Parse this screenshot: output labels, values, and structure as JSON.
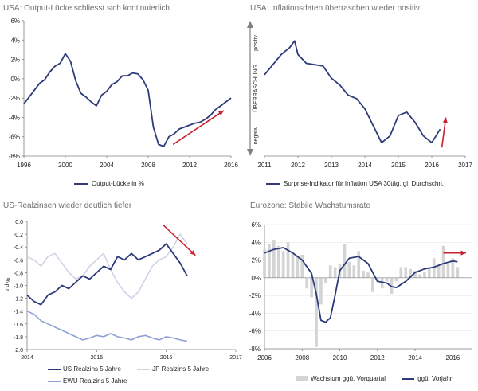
{
  "chart_data": [
    {
      "type": "line",
      "title": "USA: Output-Lücke schliesst sich kontinuierlich",
      "xlim": [
        1996,
        2016
      ],
      "ylim": [
        -8,
        6
      ],
      "xticks": [
        "1996",
        "2000",
        "2004",
        "2008",
        "2012",
        "2016"
      ],
      "yticks": [
        "6%",
        "4%",
        "2%",
        "0%",
        "-2%",
        "-4%",
        "-6%",
        "-8%"
      ],
      "series": [
        {
          "name": "Output-Lücke in %",
          "color": "#2e3a7a",
          "x": [
            1996,
            1996.5,
            1997,
            1997.5,
            1998,
            1998.5,
            1999,
            1999.5,
            2000,
            2000.5,
            2001,
            2001.5,
            2002,
            2002.5,
            2003,
            2003.5,
            2004,
            2004.5,
            2005,
            2005.5,
            2006,
            2006.5,
            2007,
            2007.5,
            2008,
            2008.5,
            2009,
            2009.5,
            2010,
            2010.5,
            2011,
            2011.5,
            2012,
            2012.5,
            2013,
            2013.5,
            2014,
            2014.5,
            2015,
            2015.5,
            2016
          ],
          "values": [
            -2.6,
            -1.9,
            -1.2,
            -0.5,
            -0.1,
            0.7,
            1.3,
            1.6,
            2.6,
            1.8,
            -0.2,
            -1.5,
            -1.9,
            -2.4,
            -2.8,
            -1.7,
            -1.3,
            -0.6,
            -0.3,
            0.3,
            0.3,
            0.6,
            0.5,
            -0.1,
            -1.2,
            -5.0,
            -6.8,
            -7.0,
            -6.0,
            -5.7,
            -5.2,
            -5.0,
            -4.8,
            -4.6,
            -4.5,
            -4.2,
            -3.8,
            -3.2,
            -2.8,
            -2.4,
            -2.0
          ]
        }
      ],
      "annotations": [
        "trend arrow upward"
      ]
    },
    {
      "type": "line",
      "title": "USA: Inflationsdaten überraschen wieder positiv",
      "xlim": [
        2011,
        2017
      ],
      "xticks": [
        "2011",
        "2012",
        "2013",
        "2014",
        "2015",
        "2016",
        "2017"
      ],
      "ylabel": "ÜBERRASCHUNG",
      "ylabel_top": "positiv",
      "ylabel_bottom": "negativ",
      "series": [
        {
          "name": "Surprise-Indikator für Inflation  USA 30täg. gl. Durchschn.",
          "color": "#2e3a7a",
          "x": [
            2011,
            2011.25,
            2011.5,
            2011.75,
            2011.9,
            2012.0,
            2012.25,
            2012.5,
            2012.75,
            2013.0,
            2013.25,
            2013.5,
            2013.75,
            2014.0,
            2014.25,
            2014.5,
            2014.75,
            2015.0,
            2015.25,
            2015.5,
            2015.75,
            2016.0,
            2016.25
          ],
          "values": [
            0.45,
            0.6,
            0.75,
            0.85,
            0.95,
            0.75,
            0.62,
            0.6,
            0.58,
            0.4,
            0.3,
            0.15,
            0.1,
            -0.05,
            -0.3,
            -0.55,
            -0.45,
            -0.15,
            -0.1,
            -0.25,
            -0.45,
            -0.55,
            -0.35
          ]
        }
      ],
      "annotations": [
        "trend arrow upward"
      ]
    },
    {
      "type": "line",
      "title": "US-Realzinsen wieder deutlich tiefer",
      "xlim": [
        2014,
        2017
      ],
      "ylim": [
        -2.0,
        0.0
      ],
      "xticks": [
        "2014",
        "2015",
        "2016",
        "2017"
      ],
      "yticks": [
        "0.0",
        "-0.2",
        "-0.4",
        "-0.6",
        "-0.8",
        "-1.0",
        "-1.2",
        "-1.4",
        "-1.6",
        "-1.8",
        "-2.0"
      ],
      "ylabel": "% p.a.",
      "series": [
        {
          "name": "US Realzins 5 Jahre",
          "color": "#2e3a7a",
          "x": [
            2014.0,
            2014.1,
            2014.2,
            2014.3,
            2014.4,
            2014.5,
            2014.6,
            2014.7,
            2014.8,
            2014.9,
            2015.0,
            2015.1,
            2015.2,
            2015.3,
            2015.4,
            2015.5,
            2015.6,
            2015.7,
            2015.8,
            2015.9,
            2016.0,
            2016.1,
            2016.2,
            2016.3
          ],
          "values": [
            -1.15,
            -1.25,
            -1.3,
            -1.15,
            -1.1,
            -1.0,
            -1.05,
            -0.95,
            -0.85,
            -0.9,
            -0.8,
            -0.7,
            -0.75,
            -0.55,
            -0.6,
            -0.5,
            -0.6,
            -0.55,
            -0.5,
            -0.45,
            -0.35,
            -0.5,
            -0.65,
            -0.85
          ]
        },
        {
          "name": "JP Realzins 5 Jahre",
          "color": "#cfd3e6",
          "x": [
            2014.0,
            2014.1,
            2014.2,
            2014.3,
            2014.4,
            2014.5,
            2014.6,
            2014.7,
            2014.8,
            2014.9,
            2015.0,
            2015.1,
            2015.2,
            2015.3,
            2015.4,
            2015.5,
            2015.6,
            2015.7,
            2015.8,
            2015.9,
            2016.0,
            2016.1,
            2016.2,
            2016.3
          ],
          "values": [
            -0.55,
            -0.6,
            -0.7,
            -0.55,
            -0.5,
            -0.65,
            -0.8,
            -0.9,
            -0.85,
            -0.7,
            -0.6,
            -0.5,
            -0.75,
            -0.95,
            -1.1,
            -1.2,
            -1.1,
            -0.9,
            -0.7,
            -0.6,
            -0.55,
            -0.4,
            -0.2,
            -0.35
          ]
        },
        {
          "name": "EWU Realzins 5 Jahre",
          "color": "#8d9fd4",
          "x": [
            2014.0,
            2014.1,
            2014.2,
            2014.3,
            2014.4,
            2014.5,
            2014.6,
            2014.7,
            2014.8,
            2014.9,
            2015.0,
            2015.1,
            2015.2,
            2015.3,
            2015.4,
            2015.5,
            2015.6,
            2015.7,
            2015.8,
            2015.9,
            2016.0,
            2016.1,
            2016.2,
            2016.3
          ],
          "values": [
            -1.4,
            -1.45,
            -1.55,
            -1.6,
            -1.65,
            -1.7,
            -1.75,
            -1.8,
            -1.85,
            -1.82,
            -1.78,
            -1.8,
            -1.75,
            -1.8,
            -1.82,
            -1.85,
            -1.8,
            -1.78,
            -1.82,
            -1.85,
            -1.8,
            -1.82,
            -1.85,
            -1.87
          ]
        }
      ],
      "annotations": [
        "trend arrow downward"
      ]
    },
    {
      "type": "bar",
      "title": "Eurozone: Stabile Wachstumsrate",
      "xlim": [
        2006,
        2017
      ],
      "ylim": [
        -8,
        6
      ],
      "xticks": [
        "2006",
        "2008",
        "2010",
        "2012",
        "2014",
        "2016"
      ],
      "yticks": [
        "6%",
        "4%",
        "2%",
        "0%",
        "-2%",
        "-4%",
        "-6%",
        "-8%"
      ],
      "series": [
        {
          "name": "Wachstum ggü. Vorquartal",
          "color": "#d4d4d4",
          "x": [
            2006.0,
            2006.25,
            2006.5,
            2006.75,
            2007.0,
            2007.25,
            2007.5,
            2007.75,
            2008.0,
            2008.25,
            2008.5,
            2008.75,
            2009.0,
            2009.25,
            2009.5,
            2009.75,
            2010.0,
            2010.25,
            2010.5,
            2010.75,
            2011.0,
            2011.25,
            2011.5,
            2011.75,
            2012.0,
            2012.25,
            2012.5,
            2012.75,
            2013.0,
            2013.25,
            2013.5,
            2013.75,
            2014.0,
            2014.25,
            2014.5,
            2014.75,
            2015.0,
            2015.25,
            2015.5,
            2015.75,
            2016.0,
            2016.25
          ],
          "values": [
            3.2,
            3.8,
            4.2,
            3.6,
            3.0,
            4.0,
            2.8,
            2.4,
            2.6,
            -1.2,
            -2.2,
            -7.8,
            -3.0,
            -0.6,
            1.4,
            1.2,
            1.6,
            3.8,
            1.8,
            1.4,
            3.0,
            0.8,
            0.6,
            -1.6,
            -0.4,
            -1.2,
            -0.4,
            -1.8,
            -0.4,
            1.2,
            1.2,
            1.0,
            0.8,
            0.4,
            0.6,
            1.2,
            2.2,
            1.4,
            3.6,
            1.6,
            2.2,
            1.2
          ]
        },
        {
          "name": "ggü. Vorjahr",
          "color": "#2e3a7a",
          "kind": "line",
          "x": [
            2006.0,
            2006.5,
            2007.0,
            2007.5,
            2008.0,
            2008.5,
            2008.75,
            2009.0,
            2009.25,
            2009.5,
            2009.75,
            2010.0,
            2010.5,
            2011.0,
            2011.5,
            2011.75,
            2012.0,
            2012.5,
            2012.75,
            2013.0,
            2013.5,
            2014.0,
            2014.5,
            2015.0,
            2015.5,
            2016.0,
            2016.25
          ],
          "values": [
            2.8,
            3.2,
            3.4,
            2.8,
            2.0,
            0.5,
            -1.8,
            -4.8,
            -5.0,
            -4.5,
            -2.0,
            0.8,
            2.2,
            2.4,
            1.6,
            0.6,
            -0.4,
            -0.6,
            -1.0,
            -1.1,
            -0.4,
            0.6,
            1.0,
            1.2,
            1.6,
            1.9,
            1.8
          ]
        }
      ],
      "annotations": [
        "trend arrow rightward"
      ]
    }
  ],
  "panels": {
    "p1": {
      "title": "USA: Output-Lücke schliesst sich kontinuierlich",
      "legend": "Output-Lücke in %"
    },
    "p2": {
      "title": "USA: Inflationsdaten überraschen wieder positiv",
      "legend": "Surprise-Indikator für Inflation  USA 30täg. gl. Durchschn.",
      "ylabel": "ÜBERRASCHUNG",
      "ylabel_top": "positiv",
      "ylabel_bottom": "negativ"
    },
    "p3": {
      "title": "US-Realzinsen wieder deutlich tiefer",
      "ylabel": "% p.a.",
      "legend_us": "US Realzins 5 Jahre",
      "legend_jp": "JP Realzins 5 Jahre",
      "legend_ewu": "EWU Realzins 5 Jahre"
    },
    "p4": {
      "title": "Eurozone: Stabile Wachstumsrate",
      "legend_bar": "Wachstum ggü. Vorquartal",
      "legend_line": "ggü. Vorjahr"
    }
  },
  "colors": {
    "navy": "#2e3a7a",
    "light_lavender": "#cfd3e6",
    "periwinkle": "#8d9fd4",
    "bar_gray": "#d4d4d4",
    "arrow_red": "#c8202f",
    "axis_gray": "#808080",
    "grid": "#e6e6e6",
    "title_gray": "#6d6e71"
  }
}
